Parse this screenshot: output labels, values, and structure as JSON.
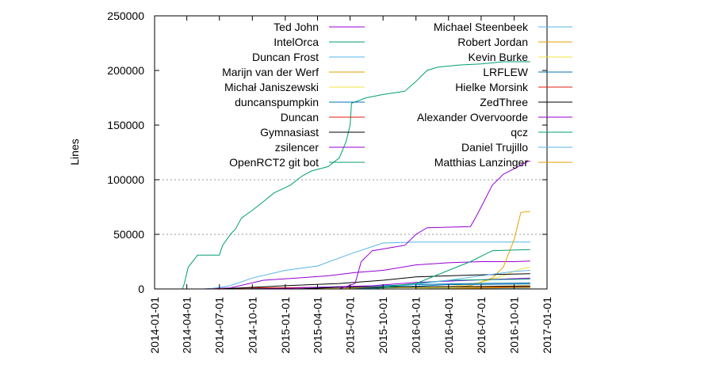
{
  "chart_data": {
    "type": "line",
    "title": "",
    "xlabel": "",
    "ylabel": "Lines",
    "x_type": "date",
    "xlim": [
      "2014-01-01",
      "2017-01-01"
    ],
    "ylim": [
      0,
      250000
    ],
    "x_ticks": [
      "2014-01-01",
      "2014-04-01",
      "2014-07-01",
      "2014-10-01",
      "2015-01-01",
      "2015-04-01",
      "2015-07-01",
      "2015-10-01",
      "2016-01-01",
      "2016-04-01",
      "2016-07-01",
      "2016-10-01",
      "2017-01-01"
    ],
    "y_ticks": [
      "0",
      "50000",
      "100000",
      "150000",
      "200000",
      "250000"
    ],
    "grid": {
      "y_values": [
        50000,
        100000
      ],
      "style": "dotted",
      "color": "#999999"
    },
    "legend_placement": "top-inside, two columns",
    "series": [
      {
        "name": "Ted John",
        "color": "#9400d3",
        "points": [
          [
            "2014-05-15",
            0
          ],
          [
            "2014-08-01",
            1000
          ],
          [
            "2014-11-01",
            8000
          ],
          [
            "2015-02-01",
            10000
          ],
          [
            "2015-05-01",
            12000
          ],
          [
            "2015-07-15",
            15000
          ],
          [
            "2015-10-01",
            17000
          ],
          [
            "2016-01-01",
            22000
          ],
          [
            "2016-04-01",
            24000
          ],
          [
            "2016-07-01",
            25000
          ],
          [
            "2016-10-01",
            25000
          ],
          [
            "2016-11-15",
            25500
          ]
        ]
      },
      {
        "name": "IntelOrca",
        "color": "#009e73",
        "points": [
          [
            "2014-03-20",
            0
          ],
          [
            "2014-03-25",
            5000
          ],
          [
            "2014-04-05",
            20000
          ],
          [
            "2014-05-01",
            31000
          ],
          [
            "2014-07-01",
            31000
          ],
          [
            "2014-07-10",
            40000
          ],
          [
            "2014-08-01",
            50000
          ],
          [
            "2014-08-15",
            55000
          ],
          [
            "2014-09-01",
            65000
          ],
          [
            "2014-10-01",
            72000
          ],
          [
            "2014-11-01",
            80000
          ],
          [
            "2014-12-01",
            88000
          ],
          [
            "2015-01-15",
            95000
          ],
          [
            "2015-02-15",
            103000
          ],
          [
            "2015-03-15",
            108000
          ],
          [
            "2015-05-01",
            112000
          ],
          [
            "2015-06-01",
            120000
          ],
          [
            "2015-06-20",
            135000
          ],
          [
            "2015-07-01",
            150000
          ],
          [
            "2015-07-05",
            170000
          ],
          [
            "2015-08-15",
            175000
          ],
          [
            "2015-10-01",
            178000
          ],
          [
            "2015-12-01",
            181000
          ],
          [
            "2016-01-01",
            190000
          ],
          [
            "2016-02-01",
            200000
          ],
          [
            "2016-03-01",
            203000
          ],
          [
            "2016-05-01",
            205000
          ],
          [
            "2016-07-01",
            206000
          ],
          [
            "2016-09-01",
            208000
          ],
          [
            "2016-11-15",
            208000
          ]
        ]
      },
      {
        "name": "Duncan Frost",
        "color": "#56b4e9",
        "points": [
          [
            "2014-06-01",
            0
          ],
          [
            "2014-08-01",
            3000
          ],
          [
            "2014-10-01",
            10000
          ],
          [
            "2015-01-01",
            17000
          ],
          [
            "2015-04-01",
            21000
          ],
          [
            "2015-07-01",
            32000
          ],
          [
            "2015-10-01",
            42000
          ],
          [
            "2016-01-01",
            43000
          ],
          [
            "2016-04-01",
            43000
          ],
          [
            "2016-11-15",
            43000
          ]
        ]
      },
      {
        "name": "Marijn van der Werf",
        "color": "#e69f00",
        "points": [
          [
            "2016-01-01",
            0
          ],
          [
            "2016-04-01",
            1500
          ],
          [
            "2016-06-01",
            3000
          ],
          [
            "2016-08-01",
            10000
          ],
          [
            "2016-09-01",
            20000
          ],
          [
            "2016-10-01",
            45000
          ],
          [
            "2016-10-20",
            70000
          ],
          [
            "2016-11-15",
            71000
          ]
        ]
      },
      {
        "name": "Michał Janiszewski",
        "color": "#f0e442",
        "points": [
          [
            "2016-01-01",
            0
          ],
          [
            "2016-04-01",
            2000
          ],
          [
            "2016-07-01",
            6000
          ],
          [
            "2016-09-01",
            12000
          ],
          [
            "2016-10-15",
            18000
          ],
          [
            "2016-11-15",
            20000
          ]
        ]
      },
      {
        "name": "duncanspumpkin",
        "color": "#0072b2",
        "points": [
          [
            "2014-09-01",
            0
          ],
          [
            "2015-01-01",
            1000
          ],
          [
            "2015-06-01",
            2000
          ],
          [
            "2015-10-01",
            3000
          ],
          [
            "2016-01-01",
            4000
          ],
          [
            "2016-06-01",
            5000
          ],
          [
            "2016-11-15",
            5500
          ]
        ]
      },
      {
        "name": "Duncan",
        "color": "#e51e10",
        "points": [
          [
            "2014-06-01",
            0
          ],
          [
            "2014-10-01",
            1000
          ],
          [
            "2015-06-01",
            1500
          ],
          [
            "2016-11-15",
            2000
          ]
        ]
      },
      {
        "name": "Gymnasiast",
        "color": "#000000",
        "points": [
          [
            "2014-07-01",
            0
          ],
          [
            "2015-01-01",
            3000
          ],
          [
            "2015-06-01",
            5000
          ],
          [
            "2015-10-01",
            8000
          ],
          [
            "2016-01-01",
            11000
          ],
          [
            "2016-04-01",
            12000
          ],
          [
            "2016-07-01",
            13000
          ],
          [
            "2016-11-15",
            14000
          ]
        ]
      },
      {
        "name": "zsilencer",
        "color": "#9400d3",
        "points": [
          [
            "2014-10-01",
            0
          ],
          [
            "2015-01-01",
            500
          ],
          [
            "2015-09-01",
            3000
          ],
          [
            "2016-01-01",
            6000
          ],
          [
            "2016-06-01",
            8000
          ],
          [
            "2016-11-15",
            10000
          ]
        ]
      },
      {
        "name": "OpenRCT2 git bot",
        "color": "#009e73",
        "points": [
          [
            "2015-06-01",
            0
          ],
          [
            "2015-10-01",
            2000
          ],
          [
            "2016-01-01",
            5000
          ],
          [
            "2016-04-01",
            8000
          ],
          [
            "2016-11-15",
            9000
          ]
        ]
      },
      {
        "name": "Michael Steenbeek",
        "color": "#56b4e9",
        "points": [
          [
            "2015-07-01",
            0
          ],
          [
            "2015-12-01",
            3000
          ],
          [
            "2016-04-01",
            8000
          ],
          [
            "2016-07-01",
            12000
          ],
          [
            "2016-10-01",
            16000
          ],
          [
            "2016-11-15",
            17000
          ]
        ]
      },
      {
        "name": "Robert Jordan",
        "color": "#e69f00",
        "points": [
          [
            "2015-04-01",
            0
          ],
          [
            "2015-10-01",
            1000
          ],
          [
            "2016-04-01",
            2000
          ],
          [
            "2016-11-15",
            3000
          ]
        ]
      },
      {
        "name": "Kevin Burke",
        "color": "#f0e442",
        "points": [
          [
            "2015-03-01",
            0
          ],
          [
            "2015-09-01",
            1000
          ],
          [
            "2016-11-15",
            1500
          ]
        ]
      },
      {
        "name": "LRFLEW",
        "color": "#0072b2",
        "points": [
          [
            "2015-07-01",
            0
          ],
          [
            "2015-12-01",
            2000
          ],
          [
            "2016-04-01",
            4000
          ],
          [
            "2016-11-15",
            4500
          ]
        ]
      },
      {
        "name": "Hielke Morsink",
        "color": "#e51e10",
        "points": [
          [
            "2016-03-01",
            0
          ],
          [
            "2016-07-01",
            1000
          ],
          [
            "2016-11-15",
            2000
          ]
        ]
      },
      {
        "name": "ZedThree",
        "color": "#000000",
        "points": [
          [
            "2015-02-01",
            0
          ],
          [
            "2015-06-01",
            1500
          ],
          [
            "2016-11-15",
            2500
          ]
        ]
      },
      {
        "name": "Alexander Overvoorde",
        "color": "#9400d3",
        "points": [
          [
            "2015-06-01",
            0
          ],
          [
            "2015-07-15",
            5000
          ],
          [
            "2015-08-01",
            25000
          ],
          [
            "2015-09-01",
            35000
          ],
          [
            "2015-12-01",
            40000
          ],
          [
            "2016-01-01",
            50000
          ],
          [
            "2016-02-01",
            56000
          ],
          [
            "2016-06-01",
            57000
          ],
          [
            "2016-06-15",
            65000
          ],
          [
            "2016-07-01",
            75000
          ],
          [
            "2016-08-01",
            95000
          ],
          [
            "2016-09-01",
            105000
          ],
          [
            "2016-10-01",
            110000
          ],
          [
            "2016-11-10",
            117000
          ],
          [
            "2016-11-15",
            117000
          ]
        ]
      },
      {
        "name": "qcz",
        "color": "#009e73",
        "points": [
          [
            "2015-09-01",
            0
          ],
          [
            "2016-01-01",
            5000
          ],
          [
            "2016-04-01",
            17000
          ],
          [
            "2016-06-01",
            25000
          ],
          [
            "2016-08-01",
            35000
          ],
          [
            "2016-11-15",
            36000
          ]
        ]
      },
      {
        "name": "Daniel Trujillo",
        "color": "#56b4e9",
        "points": [
          [
            "2016-01-01",
            0
          ],
          [
            "2016-06-01",
            500
          ],
          [
            "2016-11-15",
            1000
          ]
        ]
      },
      {
        "name": "Matthias Lanzinger",
        "color": "#e69f00",
        "points": [
          [
            "2016-03-01",
            0
          ],
          [
            "2016-08-01",
            1000
          ],
          [
            "2016-11-15",
            1500
          ]
        ]
      }
    ]
  }
}
